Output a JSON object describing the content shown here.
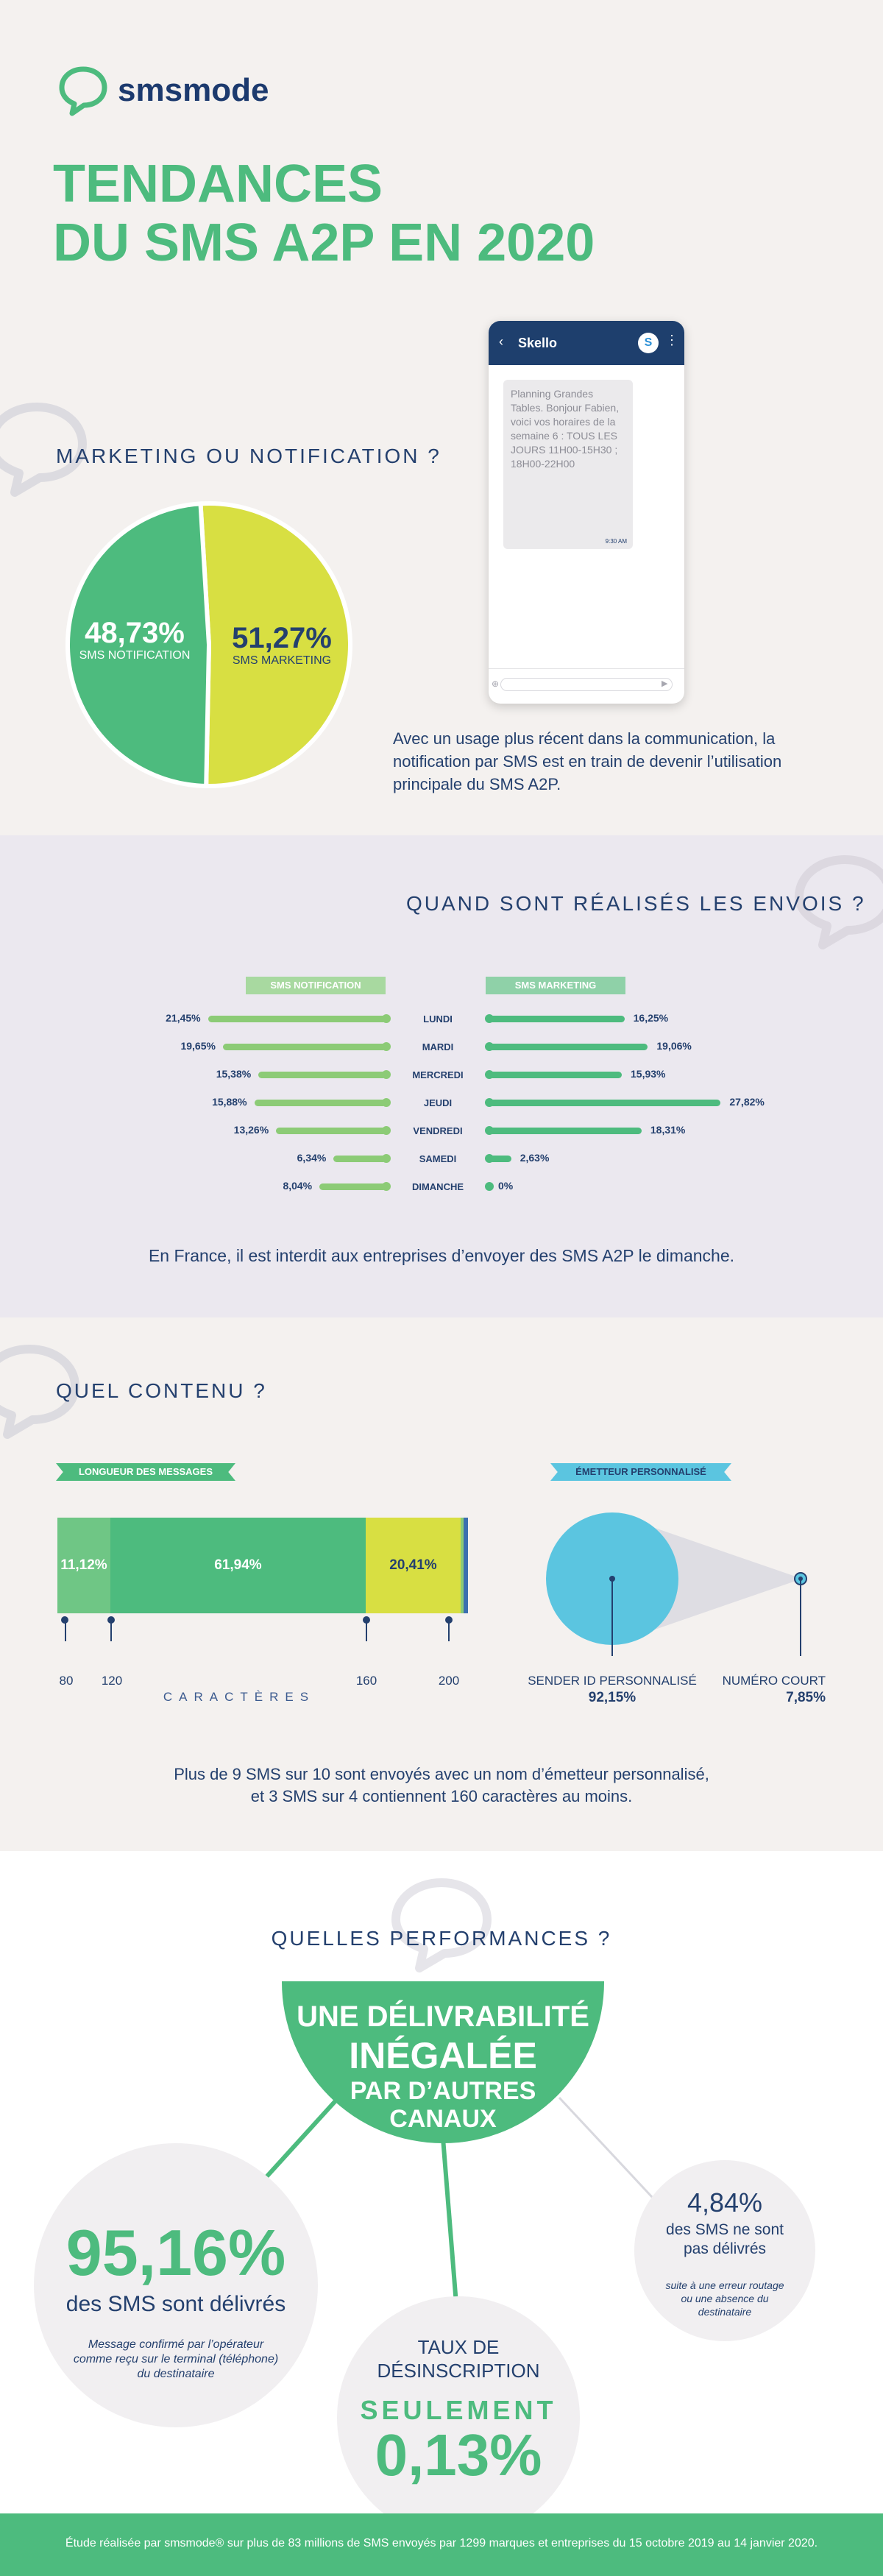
{
  "brand": {
    "name": "smsmode"
  },
  "title": {
    "line1": "TENDANCES",
    "line2": "DU SMS A2P EN 2020"
  },
  "marketing": {
    "heading": "MARKETING OU NOTIFICATION ?",
    "notification_pct": "48,73%",
    "notification_label": "SMS NOTIFICATION",
    "marketing_pct": "51,27%",
    "marketing_label": "SMS MARKETING",
    "description": "Avec un usage plus récent dans la communication, la notification par SMS est en train de devenir l’utilisation principale du SMS A2P.",
    "colors": {
      "notification": "#4dbb7e",
      "marketing": "#d8df42"
    }
  },
  "phone": {
    "app_name": "Skello",
    "message": "Planning Grandes Tables. Bonjour Fabien, voici vos horaires de la semaine 6 : TOUS LES JOURS 11H00-15H30 ; 18H00-22H00",
    "time": "9:30 AM"
  },
  "envois": {
    "heading": "QUAND SONT RÉALISÉS LES ENVOIS ?",
    "left_tag": "SMS NOTIFICATION",
    "right_tag": "SMS MARKETING",
    "days": [
      {
        "day": "LUNDI",
        "notif": "21,45%",
        "notif_v": 21.45,
        "mkt": "16,25%",
        "mkt_v": 16.25
      },
      {
        "day": "MARDI",
        "notif": "19,65%",
        "notif_v": 19.65,
        "mkt": "19,06%",
        "mkt_v": 19.06
      },
      {
        "day": "MERCREDI",
        "notif": "15,38%",
        "notif_v": 15.38,
        "mkt": "15,93%",
        "mkt_v": 15.93
      },
      {
        "day": "JEUDI",
        "notif": "15,88%",
        "notif_v": 15.88,
        "mkt": "27,82%",
        "mkt_v": 27.82
      },
      {
        "day": "VENDREDI",
        "notif": "13,26%",
        "notif_v": 13.26,
        "mkt": "18,31%",
        "mkt_v": 18.31
      },
      {
        "day": "SAMEDI",
        "notif": "6,34%",
        "notif_v": 6.34,
        "mkt": "2,63%",
        "mkt_v": 2.63
      },
      {
        "day": "DIMANCHE",
        "notif": "8,04%",
        "notif_v": 8.04,
        "mkt": "0%",
        "mkt_v": 0
      }
    ],
    "note": "En France, il est interdit aux entreprises d’envoyer des SMS A2P le dimanche."
  },
  "contenu": {
    "heading": "QUEL CONTENU ?",
    "longueur_tag": "LONGUEUR DES MESSAGES",
    "emetteur_tag": "ÉMETTEUR PERSONNALISÉ",
    "segments": [
      {
        "label": "11,12%",
        "value": 11.12,
        "color": "#6fc685"
      },
      {
        "label": "61,94%",
        "value": 61.94,
        "color": "#4dbb7e"
      },
      {
        "label": "20,41%",
        "value": 20.41,
        "color": "#d8df42"
      }
    ],
    "ticks": [
      "80",
      "120",
      "160",
      "200"
    ],
    "axis_label": "CARACTÈRES",
    "sender_label": "SENDER ID PERSONNALISÉ",
    "sender_pct": "92,15%",
    "short_label": "NUMÉRO COURT",
    "short_pct": "7,85%",
    "note_line1": "Plus de 9 SMS sur 10 sont envoyés avec un nom d’émetteur personnalisé,",
    "note_line2": "et 3 SMS sur 4 contiennent 160 caractères au moins."
  },
  "performances": {
    "heading": "QUELLES PERFORMANCES ?",
    "banner_line1": "UNE DÉLIVRABILITÉ",
    "banner_line2": "INÉGALÉE",
    "banner_line3": "PAR D’AUTRES",
    "banner_line4": "CANAUX",
    "delivered_pct": "95,16%",
    "delivered_label": "des SMS sont délivrés",
    "delivered_note": "Message confirmé par l’opérateur comme reçu sur le terminal (téléphone) du destinataire",
    "undelivered_pct": "4,84%",
    "undelivered_label": "des SMS ne sont pas délivrés",
    "undelivered_note": "suite à une erreur routage ou une absence du destinataire",
    "unsub_title1": "TAUX DE",
    "unsub_title2": "DÉSINSCRIPTION",
    "unsub_only": "SEULEMENT",
    "unsub_pct": "0,13%"
  },
  "footer": {
    "text": "Étude réalisée par smsmode® sur plus de 83 millions de SMS envoyés par 1299 marques et entreprises du 15 octobre 2019 au 14 janvier 2020."
  }
}
